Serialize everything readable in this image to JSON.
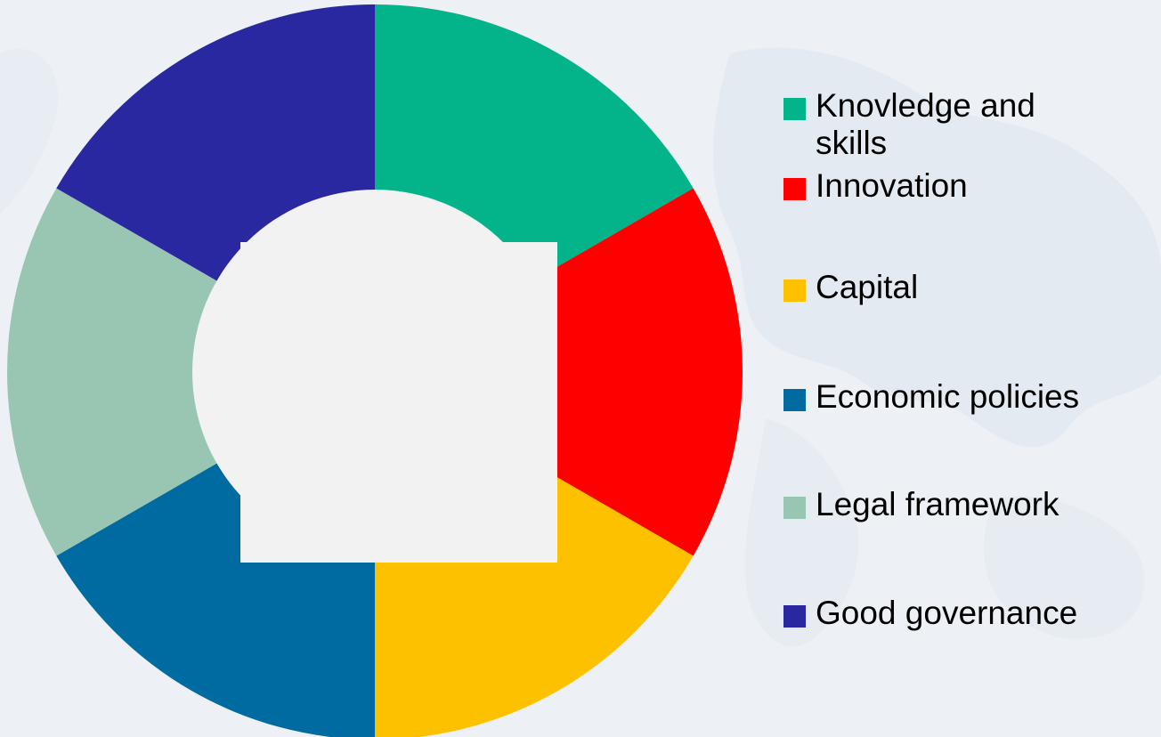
{
  "chart_data": {
    "type": "pie",
    "variant": "donut",
    "categories": [
      "Knovledge and skills",
      "Innovation",
      "Capital",
      "Economic policies",
      "Legal framework",
      "Good governance"
    ],
    "values": [
      1,
      1,
      1,
      1,
      1,
      1
    ],
    "colors": [
      "#03b38a",
      "#fe0000",
      "#fec100",
      "#006ba0",
      "#99c6b3",
      "#2928a0"
    ],
    "center_color": "#f2f2f2",
    "legend_position": "right"
  },
  "legend": {
    "items": [
      {
        "label": "Knovledge and skills",
        "color": "#03b38a"
      },
      {
        "label": "Innovation",
        "color": "#fe0000"
      },
      {
        "label": "Capital",
        "color": "#fec100"
      },
      {
        "label": "Economic policies",
        "color": "#006ba0"
      },
      {
        "label": "Legal framework",
        "color": "#99c6b3"
      },
      {
        "label": "Good governance",
        "color": "#2928a0"
      }
    ]
  }
}
